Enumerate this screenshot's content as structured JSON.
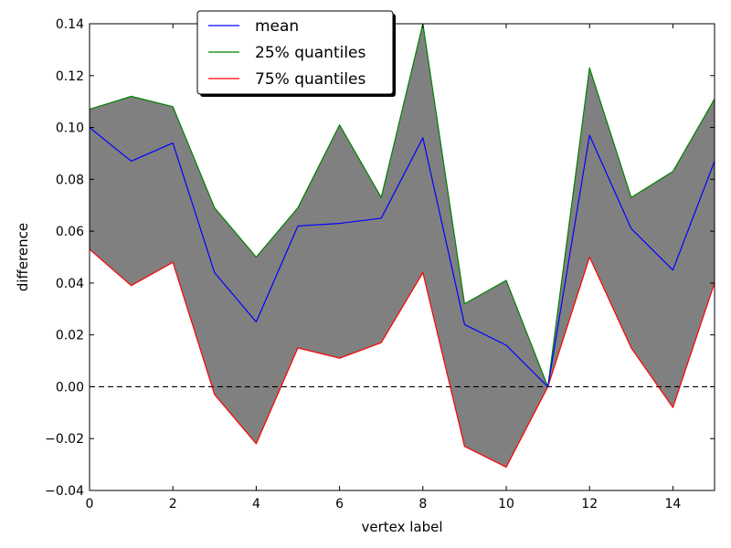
{
  "chart_data": {
    "type": "line",
    "xlabel": "vertex label",
    "ylabel": "difference",
    "xlim": [
      0,
      15
    ],
    "ylim": [
      -0.04,
      0.14
    ],
    "x": [
      0,
      1,
      2,
      3,
      4,
      5,
      6,
      7,
      8,
      9,
      10,
      11,
      12,
      13,
      14,
      15
    ],
    "x_ticks": [
      0,
      2,
      4,
      6,
      8,
      10,
      12,
      14
    ],
    "x_tick_labels": [
      "0",
      "2",
      "4",
      "6",
      "8",
      "10",
      "12",
      "14"
    ],
    "y_ticks": [
      -0.04,
      -0.02,
      0.0,
      0.02,
      0.04,
      0.06,
      0.08,
      0.1,
      0.12,
      0.14
    ],
    "y_tick_labels": [
      "−0.04",
      "−0.02",
      "0.00",
      "0.02",
      "0.04",
      "0.06",
      "0.08",
      "0.10",
      "0.12",
      "0.14"
    ],
    "grid": false,
    "legend_position": "top-left",
    "fill_between": {
      "upper_series": "25% quantiles",
      "lower_series": "75% quantiles",
      "color": "#808080"
    },
    "reference_line": {
      "y": 0.0,
      "style": "dashed",
      "color": "#000000"
    },
    "series": [
      {
        "name": "mean",
        "color": "#0000ff",
        "values": [
          0.1,
          0.087,
          0.094,
          0.044,
          0.025,
          0.062,
          0.063,
          0.065,
          0.096,
          0.024,
          0.016,
          0.0,
          0.097,
          0.061,
          0.045,
          0.087
        ]
      },
      {
        "name": "25% quantiles",
        "color": "#008000",
        "values": [
          0.107,
          0.112,
          0.108,
          0.069,
          0.05,
          0.069,
          0.101,
          0.073,
          0.14,
          0.032,
          0.041,
          0.0,
          0.123,
          0.073,
          0.083,
          0.111
        ]
      },
      {
        "name": "75% quantiles",
        "color": "#ff0000",
        "values": [
          0.053,
          0.039,
          0.048,
          -0.003,
          -0.022,
          0.015,
          0.011,
          0.017,
          0.044,
          -0.023,
          -0.031,
          0.0,
          0.05,
          0.015,
          -0.008,
          0.04
        ]
      }
    ]
  }
}
